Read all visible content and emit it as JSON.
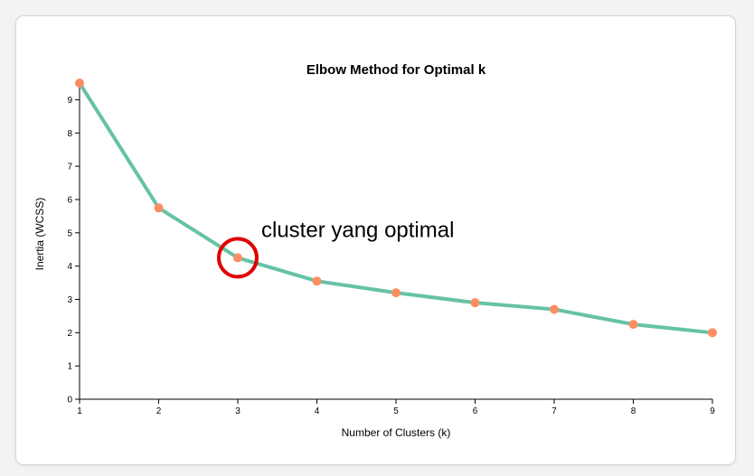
{
  "colors": {
    "line": "#66c2a5",
    "point": "#fc8d62",
    "highlight": "#e00000",
    "axis": "#000000"
  },
  "chart_data": {
    "type": "line",
    "title": "Elbow Method for Optimal k",
    "xlabel": "Number of Clusters (k)",
    "ylabel": "Inertia (WCSS)",
    "x": [
      1,
      2,
      3,
      4,
      5,
      6,
      7,
      8,
      9
    ],
    "series": [
      {
        "values": [
          9.5,
          5.75,
          4.25,
          3.55,
          3.2,
          2.9,
          2.7,
          2.25,
          2.0
        ]
      }
    ],
    "xlim": [
      1,
      9
    ],
    "ylim": [
      0,
      9.5
    ],
    "xticks": [
      "1",
      "2",
      "3",
      "4",
      "5",
      "6",
      "7",
      "8",
      "9"
    ],
    "yticks": [
      "0",
      "1",
      "2",
      "3",
      "4",
      "5",
      "6",
      "7",
      "8",
      "9"
    ],
    "grid": false,
    "annotation": {
      "text": "cluster yang optimal",
      "x": 3,
      "y": 4.25
    }
  }
}
